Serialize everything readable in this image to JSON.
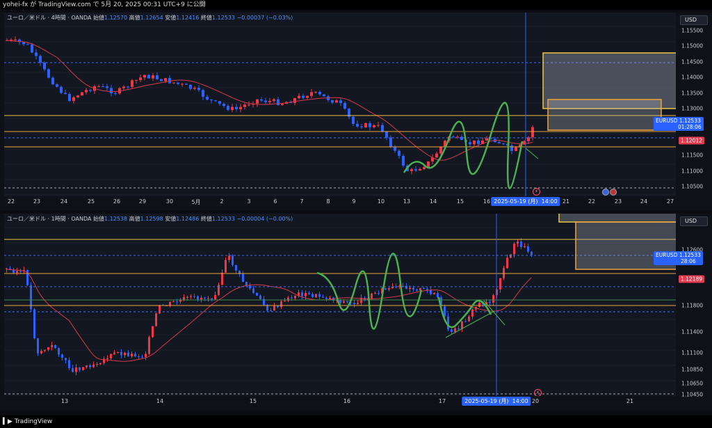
{
  "topbar": {
    "text": "yohei-fx が TradingView.com で 5月 20, 2025 00:31 UTC+9 に公開"
  },
  "footer": {
    "brand": "TradingView",
    "logo_icon": "tv-logo-icon"
  },
  "colors": {
    "up": "#f23645",
    "down": "#2962ff",
    "ma": "#d63a4a",
    "green": "#4caf50",
    "orange": "#f0a43a",
    "yellow": "#f0c541",
    "blue_dash": "#4a6fd8"
  },
  "pane1": {
    "legend": {
      "symbol": "ユーロ／米ドル · 4時間 · OANDA",
      "open_label": "始値",
      "open": "1.12570",
      "high_label": "高値",
      "high": "1.12654",
      "low_label": "安値",
      "low": "1.12416",
      "close_label": "終値",
      "close": "1.12533",
      "change": "−0.00037 (−0.03%)"
    },
    "currency": "USD",
    "price_ticks": [
      "1.15500",
      "1.15000",
      "1.14500",
      "1.14000",
      "1.13500",
      "1.13000",
      "1.12500",
      "1.12000",
      "1.11500",
      "1.11000",
      "1.10500"
    ],
    "symbol_badge": "EURUSD",
    "price_badge": "1.12533",
    "countdown": "01:28:06",
    "red_badge": "1.12012",
    "date_ticks": [
      "22",
      "23",
      "24",
      "25",
      "26",
      "29",
      "30",
      "5月",
      "2",
      "3",
      "6",
      "7",
      "8",
      "9",
      "10",
      "13",
      "14",
      "15",
      "16",
      "21",
      "22",
      "23",
      "24",
      "27"
    ],
    "crosshair_date": "2025-05-19 (月)",
    "crosshair_time": "14:00"
  },
  "pane2": {
    "legend": {
      "symbol": "ユーロ／米ドル · 1時間 · OANDA",
      "open_label": "始値",
      "open": "1.12538",
      "high_label": "高値",
      "high": "1.12598",
      "low_label": "安値",
      "low": "1.12486",
      "close_label": "終値",
      "close": "1.12533",
      "change": "−0.00004 (−0.00%)"
    },
    "currency": "USD",
    "price_ticks": [
      "1.12600",
      "1.11800",
      "1.11400",
      "1.11100",
      "1.10850",
      "1.10650",
      "1.10450"
    ],
    "symbol_badge": "EURUSD",
    "price_badge": "1.12533",
    "countdown": "28:06",
    "red_badge": "1.12189",
    "date_ticks": [
      "13",
      "14",
      "15",
      "16",
      "17",
      "20",
      "21"
    ],
    "crosshair_date": "2025-05-19 (月)",
    "crosshair_time": "14:00"
  }
}
